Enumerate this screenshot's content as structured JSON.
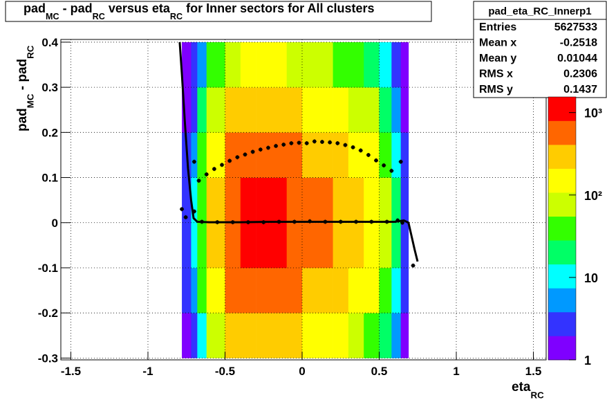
{
  "chart_data": {
    "type": "histogram2d",
    "title_parts": [
      "pad",
      "MC",
      " - pad",
      "RC",
      " versus eta",
      "RC",
      " for Inner sectors for All clusters"
    ],
    "x_label_parts": [
      "eta",
      "RC"
    ],
    "y_label_parts": [
      "pad",
      "MC",
      " - pad",
      "RC"
    ],
    "xlim": [
      -1.565,
      1.583
    ],
    "ylim": [
      -0.304,
      0.406
    ],
    "xticks": [
      -1.5,
      -1,
      -0.5,
      0,
      0.5,
      1,
      1.5
    ],
    "yticks": [
      -0.3,
      -0.2,
      -0.1,
      0,
      0.1,
      0.2,
      0.3,
      0.4
    ],
    "grid": true,
    "log_z": true,
    "zlim": [
      1,
      1550
    ],
    "zticks": [
      1,
      {
        "value": 10,
        "label": "10"
      },
      {
        "value": 100,
        "label": "10²"
      },
      {
        "value": 1000,
        "label": "10³"
      }
    ],
    "palette": [
      "#7f00ff",
      "#3333ff",
      "#0099ff",
      "#00ffff",
      "#00ff66",
      "#33ff00",
      "#ccff00",
      "#ffff00",
      "#ffcc00",
      "#ff6600",
      "#ff0000"
    ],
    "xbins": [
      -0.78,
      -0.72,
      -0.68,
      -0.62,
      -0.5,
      -0.4,
      -0.3,
      -0.2,
      -0.1,
      0,
      0.1,
      0.2,
      0.3,
      0.4,
      0.5,
      0.58,
      0.64,
      0.69
    ],
    "ybins": [
      -0.3,
      -0.2,
      -0.1,
      0,
      0.1,
      0.2,
      0.3,
      0.4
    ],
    "z": [
      [
        1,
        3,
        14,
        88,
        245,
        350,
        350,
        280,
        210,
        175,
        158,
        123,
        88,
        53,
        21,
        5,
        1
      ],
      [
        2,
        6,
        30,
        188,
        525,
        750,
        750,
        600,
        450,
        375,
        338,
        263,
        188,
        113,
        45,
        11,
        2
      ],
      [
        2,
        8,
        40,
        250,
        700,
        1000,
        1000,
        800,
        600,
        500,
        450,
        350,
        250,
        150,
        60,
        15,
        3
      ],
      [
        2,
        8,
        40,
        250,
        700,
        1000,
        1000,
        800,
        600,
        500,
        450,
        350,
        250,
        150,
        60,
        15,
        3
      ],
      [
        2,
        6,
        30,
        188,
        525,
        750,
        750,
        600,
        450,
        375,
        338,
        263,
        188,
        113,
        45,
        11,
        2
      ],
      [
        1,
        3,
        16,
        100,
        280,
        400,
        400,
        320,
        240,
        200,
        180,
        140,
        100,
        60,
        24,
        6,
        1
      ],
      [
        1,
        2,
        6,
        38,
        105,
        150,
        150,
        120,
        90,
        75,
        68,
        53,
        38,
        23,
        9,
        3,
        1
      ]
    ],
    "series": [
      {
        "kind": "markers",
        "color": "#000000",
        "x": [
          -0.7,
          -0.67,
          -0.62,
          -0.57,
          -0.52,
          -0.47,
          -0.42,
          -0.37,
          -0.32,
          -0.27,
          -0.22,
          -0.17,
          -0.12,
          -0.07,
          -0.02,
          0.03,
          0.08,
          0.13,
          0.18,
          0.23,
          0.28,
          0.33,
          0.38,
          0.43,
          0.48,
          0.53,
          0.58,
          0.64
        ],
        "values": [
          0.135,
          0.093,
          0.107,
          0.119,
          0.128,
          0.137,
          0.145,
          0.151,
          0.157,
          0.162,
          0.166,
          0.17,
          0.173,
          0.176,
          0.177,
          0.176,
          0.18,
          0.179,
          0.178,
          0.176,
          0.172,
          0.167,
          0.16,
          0.15,
          0.138,
          0.127,
          0.115,
          0.135
        ]
      },
      {
        "kind": "markers",
        "color": "#000000",
        "x": [
          -0.78,
          -0.755,
          -0.7,
          -0.65,
          -0.55,
          -0.45,
          -0.35,
          -0.25,
          -0.15,
          -0.05,
          0.05,
          0.15,
          0.25,
          0.35,
          0.45,
          0.55,
          0.62,
          0.65,
          0.72
        ],
        "values": [
          0.03,
          0.012,
          0.025,
          0.002,
          0.001,
          0.001,
          0.001,
          0.001,
          0.002,
          0.002,
          0.003,
          0.002,
          0.002,
          0.002,
          0.002,
          0.002,
          0.005,
          0,
          -0.095
        ]
      },
      {
        "kind": "line",
        "color": "#000000",
        "x": [
          -0.794,
          -0.78,
          -0.76,
          -0.74,
          -0.72,
          -0.704,
          -0.68,
          -0.6,
          -0.4,
          -0.2,
          0,
          0.2,
          0.4,
          0.6,
          0.66,
          0.69,
          0.71,
          0.73,
          0.749
        ],
        "values": [
          0.4,
          0.33,
          0.22,
          0.12,
          0.05,
          0.01,
          0.002,
          0.001,
          0.001,
          0.002,
          0.002,
          0.002,
          0.002,
          0.002,
          0.005,
          0,
          -0.03,
          -0.06,
          -0.086
        ]
      }
    ],
    "stats": {
      "name": "pad_eta_RC_Innerp1",
      "rows": [
        [
          "Entries",
          5627533
        ],
        [
          "Mean x",
          -0.2518
        ],
        [
          "Mean y",
          0.01044
        ],
        [
          "RMS x",
          0.2306
        ],
        [
          "RMS y",
          0.1437
        ]
      ]
    }
  }
}
